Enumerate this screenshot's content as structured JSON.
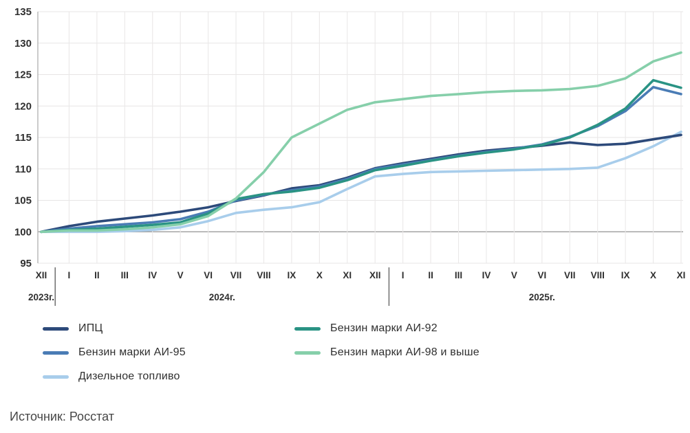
{
  "chart_data": {
    "type": "line",
    "title": "",
    "xlabel": "",
    "ylabel": "",
    "ylim": [
      95,
      135
    ],
    "y_ticks": [
      95,
      100,
      105,
      110,
      115,
      120,
      125,
      130,
      135
    ],
    "baseline_value": 100,
    "grid": true,
    "categories": [
      "XII",
      "I",
      "II",
      "III",
      "IV",
      "V",
      "VI",
      "VII",
      "VIII",
      "IX",
      "X",
      "XI",
      "XII",
      "I",
      "II",
      "III",
      "IV",
      "V",
      "VI",
      "VII",
      "VIII",
      "IX",
      "X",
      "XI"
    ],
    "year_groups": [
      {
        "label": "2023г.",
        "start": 0,
        "end": 0
      },
      {
        "label": "2024г.",
        "start": 1,
        "end": 12
      },
      {
        "label": "2025г.",
        "start": 13,
        "end": 23
      }
    ],
    "series": [
      {
        "name": "ИПЦ",
        "color": "#2d4a7a",
        "values": [
          100.0,
          100.9,
          101.6,
          102.1,
          102.6,
          103.2,
          103.9,
          104.9,
          105.8,
          106.9,
          107.4,
          108.6,
          110.1,
          110.9,
          111.6,
          112.3,
          112.9,
          113.3,
          113.7,
          114.2,
          113.8,
          114.0,
          114.7,
          115.4
        ]
      },
      {
        "name": "Бензин марки АИ-92",
        "color": "#2a9384",
        "values": [
          100.0,
          100.3,
          100.5,
          100.8,
          101.1,
          101.5,
          102.9,
          105.2,
          106.0,
          106.4,
          107.0,
          108.2,
          109.8,
          110.5,
          111.3,
          112.0,
          112.6,
          113.1,
          113.8,
          115.0,
          117.0,
          119.6,
          124.1,
          122.9
        ]
      },
      {
        "name": "Бензин марки АИ-95",
        "color": "#4a7cb5",
        "values": [
          100.0,
          100.5,
          100.9,
          101.2,
          101.5,
          102.0,
          103.2,
          105.0,
          105.9,
          106.6,
          107.2,
          108.4,
          110.0,
          110.7,
          111.4,
          112.1,
          112.7,
          113.2,
          113.9,
          115.1,
          116.8,
          119.2,
          123.0,
          121.9
        ]
      },
      {
        "name": "Бензин марки АИ-98 и выше",
        "color": "#86cfaa",
        "values": [
          100.0,
          100.2,
          100.2,
          100.4,
          100.7,
          101.2,
          102.5,
          105.3,
          109.5,
          115.0,
          117.2,
          119.4,
          120.6,
          121.1,
          121.6,
          121.9,
          122.2,
          122.4,
          122.5,
          122.7,
          123.2,
          124.4,
          127.1,
          128.5
        ]
      },
      {
        "name": "Дизельное топливо",
        "color": "#a8cdeb",
        "values": [
          100.0,
          100.0,
          100.0,
          100.1,
          100.3,
          100.7,
          101.7,
          103.0,
          103.5,
          103.9,
          104.7,
          106.8,
          108.8,
          109.2,
          109.5,
          109.6,
          109.7,
          109.8,
          109.9,
          110.0,
          110.2,
          111.7,
          113.6,
          115.9
        ]
      }
    ],
    "draw_order": [
      "Дизельное топливо",
      "ИПЦ",
      "Бензин марки АИ-95",
      "Бензин марки АИ-92",
      "Бензин марки АИ-98 и выше"
    ],
    "legend_position": "bottom"
  },
  "legend": {
    "columns": [
      [
        "ИПЦ",
        "Бензин марки АИ-95",
        "Дизельное топливо"
      ],
      [
        "Бензин марки АИ-92",
        "Бензин марки АИ-98 и выше"
      ]
    ]
  },
  "source": {
    "label": "Источник: Росстат"
  }
}
